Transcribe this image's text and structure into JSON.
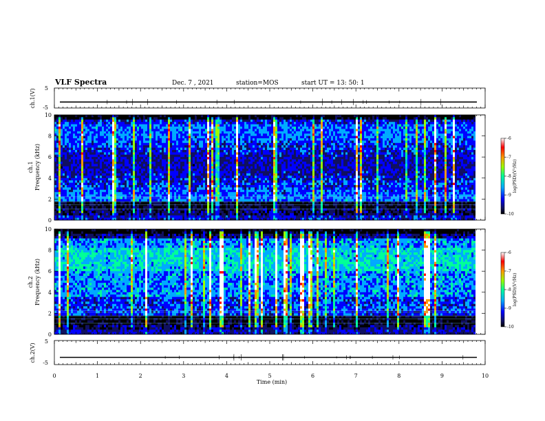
{
  "header": {
    "title": "VLF Spectra",
    "date": "Dec. 7 , 2021",
    "station": "station=MOS",
    "start": "start  UT =  13: 50: 1"
  },
  "colors": {
    "palette": [
      "#000000",
      "#101060",
      "#0000ff",
      "#00aaff",
      "#00ff99",
      "#99ff00",
      "#ff9900",
      "#ff0000",
      "#ffffff"
    ]
  },
  "chart_data": [
    {
      "type": "line",
      "name": "ch1-waveform",
      "ylabel": "ch.1(V)",
      "ylim": [
        -5,
        5
      ],
      "yticks": [
        "5",
        "-5"
      ],
      "xlim": [
        0,
        10
      ],
      "baseline": -2
    },
    {
      "type": "heatmap",
      "name": "ch1-spectrogram",
      "ylabel_top": "ch.1",
      "ylabel": "Frequency (kHz)",
      "ylim": [
        0,
        10
      ],
      "yticks": [
        "0",
        "2",
        "4",
        "6",
        "8",
        "10"
      ],
      "xlim": [
        0,
        9.8
      ],
      "colorbar": {
        "label": "log(PSD)(V²/Hz)",
        "ticks": [
          "-6",
          "-7",
          "-8",
          "-9",
          "-10"
        ],
        "range": [
          -10,
          -6
        ]
      }
    },
    {
      "type": "heatmap",
      "name": "ch2-spectrogram",
      "ylabel_top": "ch.2",
      "ylabel": "Frequency (kHz)",
      "ylim": [
        0,
        10
      ],
      "yticks": [
        "0",
        "2",
        "4",
        "6",
        "8",
        "10"
      ],
      "xlim": [
        0,
        9.8
      ],
      "colorbar": {
        "label": "log(PSD)(V²/Hz)",
        "ticks": [
          "-6",
          "-7",
          "-8",
          "-9",
          "-10"
        ],
        "range": [
          -10,
          -6
        ]
      }
    },
    {
      "type": "line",
      "name": "ch2-waveform",
      "ylabel": "ch.2(V)",
      "ylim": [
        -5,
        5
      ],
      "yticks": [
        "5",
        "-5"
      ],
      "xlim": [
        0,
        10
      ],
      "baseline": -2
    }
  ],
  "xaxis": {
    "label": "Time  (min)",
    "ticks": [
      "0",
      "1",
      "2",
      "3",
      "4",
      "5",
      "6",
      "7",
      "8",
      "9",
      "10"
    ]
  }
}
